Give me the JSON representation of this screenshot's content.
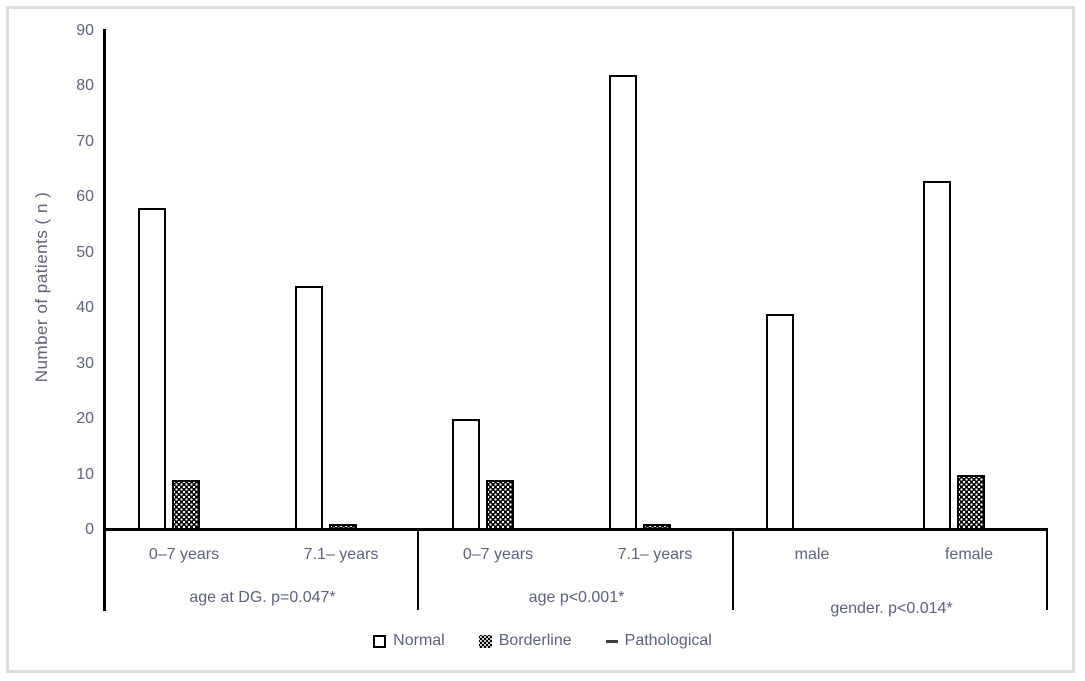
{
  "colors": {
    "text": "#5b6378",
    "axis": "#000000",
    "bar_fill": "#ffffff",
    "bar_border": "#000000",
    "frame_border": "#dcdcdc",
    "background": "#ffffff"
  },
  "chart_data": {
    "type": "bar",
    "title": "",
    "xlabel": "",
    "ylabel": "Number of patients ( n )",
    "ylim": [
      0,
      90
    ],
    "yticks": [
      0,
      10,
      20,
      30,
      40,
      50,
      60,
      70,
      80,
      90
    ],
    "grid": false,
    "legend_position": "bottom",
    "groups": [
      {
        "label": "age at DG. p=0.047*",
        "categories": [
          "0–7 years",
          "7.1– years"
        ]
      },
      {
        "label": "age p<0.001*",
        "categories": [
          "0–7 years",
          "7.1– years"
        ]
      },
      {
        "label": "gender. p<0.014*",
        "categories": [
          "male",
          "female"
        ]
      }
    ],
    "series": [
      {
        "name": "Normal",
        "style": "white-bar",
        "values": [
          58,
          44,
          20,
          82,
          39,
          63
        ]
      },
      {
        "name": "Borderline",
        "style": "checkered-bar",
        "values": [
          9,
          1,
          9,
          1,
          0,
          10
        ]
      },
      {
        "name": "Pathological",
        "style": "dash-marker",
        "values": [
          0,
          0,
          0,
          0,
          0,
          0
        ]
      }
    ]
  },
  "legend": {
    "items": [
      {
        "label": "Normal",
        "marker": "white-square"
      },
      {
        "label": "Borderline",
        "marker": "checkered-square"
      },
      {
        "label": "Pathological",
        "marker": "dash"
      }
    ]
  }
}
